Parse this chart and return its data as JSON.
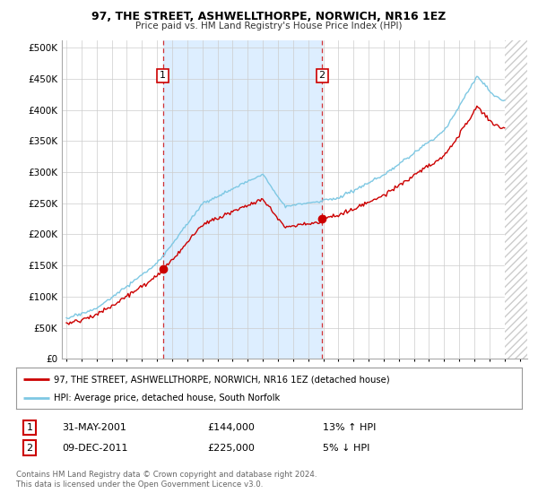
{
  "title": "97, THE STREET, ASHWELLTHORPE, NORWICH, NR16 1EZ",
  "subtitle": "Price paid vs. HM Land Registry's House Price Index (HPI)",
  "ylabel_ticks": [
    "£0",
    "£50K",
    "£100K",
    "£150K",
    "£200K",
    "£250K",
    "£300K",
    "£350K",
    "£400K",
    "£450K",
    "£500K"
  ],
  "ytick_vals": [
    0,
    50000,
    100000,
    150000,
    200000,
    250000,
    300000,
    350000,
    400000,
    450000,
    500000
  ],
  "ylim": [
    0,
    512000
  ],
  "xlim_start": 1994.7,
  "xlim_end": 2025.5,
  "data_end": 2024.0,
  "hpi_color": "#7ec8e3",
  "price_color": "#cc0000",
  "shading_color": "#ddeeff",
  "annotation1_label": "1",
  "annotation2_label": "2",
  "t1_year": 2001.38,
  "t1_price": 144000,
  "t2_year": 2011.92,
  "t2_price": 225000,
  "legend_line1": "97, THE STREET, ASHWELLTHORPE, NORWICH, NR16 1EZ (detached house)",
  "legend_line2": "HPI: Average price, detached house, South Norfolk",
  "table_row1_num": "1",
  "table_row1_date": "31-MAY-2001",
  "table_row1_price": "£144,000",
  "table_row1_hpi": "13% ↑ HPI",
  "table_row2_num": "2",
  "table_row2_date": "09-DEC-2011",
  "table_row2_price": "£225,000",
  "table_row2_hpi": "5% ↓ HPI",
  "footnote": "Contains HM Land Registry data © Crown copyright and database right 2024.\nThis data is licensed under the Open Government Licence v3.0.",
  "background_color": "#ffffff",
  "grid_color": "#cccccc"
}
